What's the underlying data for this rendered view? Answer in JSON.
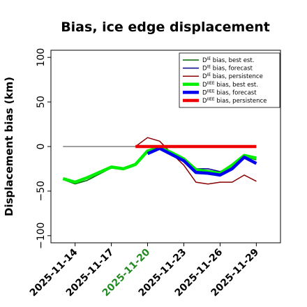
{
  "chart_data": {
    "type": "line",
    "title": "Bias, ice edge displacement",
    "xlabel": "",
    "ylabel": "Displacement bias (km)",
    "ylim": [
      -108,
      108
    ],
    "xlim": [
      -1.0,
      18.0
    ],
    "yticks": [
      -100,
      -50,
      0,
      50,
      100
    ],
    "yticklabels": [
      "−100",
      "−50",
      "0",
      "50",
      "100"
    ],
    "xticks": [
      1,
      4,
      7,
      10,
      13,
      16
    ],
    "xticklabels": [
      "2025-11-14",
      "2025-11-17",
      "2025-11-20",
      "2025-11-23",
      "2025-11-26",
      "2025-11-29"
    ],
    "xtick_colors": [
      "#000000",
      "#000000",
      "#228B22",
      "#000000",
      "#000000",
      "#000000"
    ],
    "zero_line": {
      "x": [
        0,
        16
      ],
      "y": [
        0,
        0
      ],
      "color": "#666666"
    },
    "legend_position": "top-right",
    "series": [
      {
        "name": "D^IE bias, best est.",
        "legend_base": "D",
        "legend_sup": "IE",
        "legend_rest": " bias, best est.",
        "color": "#006400",
        "width": 1.5,
        "x": [
          0,
          1,
          2,
          3,
          4,
          5,
          6,
          7,
          8,
          9,
          10,
          11,
          12,
          13,
          14,
          15,
          16
        ],
        "y": [
          -37,
          -42,
          -38,
          -31,
          -24,
          -26,
          -20,
          -6,
          -2,
          -8,
          -15,
          -28,
          -30,
          -32,
          -22,
          -11,
          -15
        ]
      },
      {
        "name": "D^IE bias, forecast",
        "legend_base": "D",
        "legend_sup": "IE",
        "legend_rest": " bias, forecast",
        "color": "#00008B",
        "width": 1.5,
        "x": [
          7,
          8,
          9,
          10,
          11,
          12,
          13,
          14,
          15,
          16
        ],
        "y": [
          -6,
          -1,
          -8,
          -15,
          -25,
          -25,
          -28,
          -22,
          -11,
          -18
        ]
      },
      {
        "name": "D^IE bias, persistence",
        "legend_base": "D",
        "legend_sup": "IE",
        "legend_rest": " bias, persistence",
        "color": "#8B0000",
        "width": 1.5,
        "x": [
          6,
          7,
          8,
          9,
          10,
          11,
          12,
          13,
          14,
          15,
          16
        ],
        "y": [
          0,
          10,
          6,
          -8,
          -21,
          -40,
          -42,
          -40,
          -40,
          -32,
          -39
        ]
      },
      {
        "name": "D^IIEE bias, best est.",
        "legend_base": "D",
        "legend_sup": "IIEE",
        "legend_rest": " bias, best est.",
        "color": "#00EE00",
        "width": 4.5,
        "x": [
          0,
          1,
          2,
          3,
          4,
          5,
          6,
          7,
          8,
          9,
          10,
          11,
          12,
          13,
          14,
          15,
          16
        ],
        "y": [
          -36,
          -40,
          -35,
          -29,
          -23,
          -25,
          -20,
          -5,
          -1,
          -7,
          -14,
          -26,
          -28,
          -30,
          -21,
          -10,
          -13
        ]
      },
      {
        "name": "D^IIEE bias, forecast",
        "legend_base": "D",
        "legend_sup": "IIEE",
        "legend_rest": " bias, forecast",
        "color": "#0000EE",
        "width": 4.5,
        "x": [
          7,
          8,
          9,
          10,
          11,
          12,
          13,
          14,
          15,
          16
        ],
        "y": [
          -8,
          -2,
          -9,
          -16,
          -29,
          -30,
          -32,
          -25,
          -12,
          -19
        ]
      },
      {
        "name": "D^IIEE bias, persistence",
        "legend_base": "D",
        "legend_sup": "IIEE",
        "legend_rest": " bias, persistence",
        "color": "#EE0000",
        "width": 4.5,
        "x": [
          6,
          7,
          8,
          9,
          10,
          11,
          12,
          13,
          14,
          15,
          16
        ],
        "y": [
          0,
          0,
          0,
          0,
          0,
          0,
          0,
          0,
          0,
          0,
          0
        ]
      }
    ]
  }
}
